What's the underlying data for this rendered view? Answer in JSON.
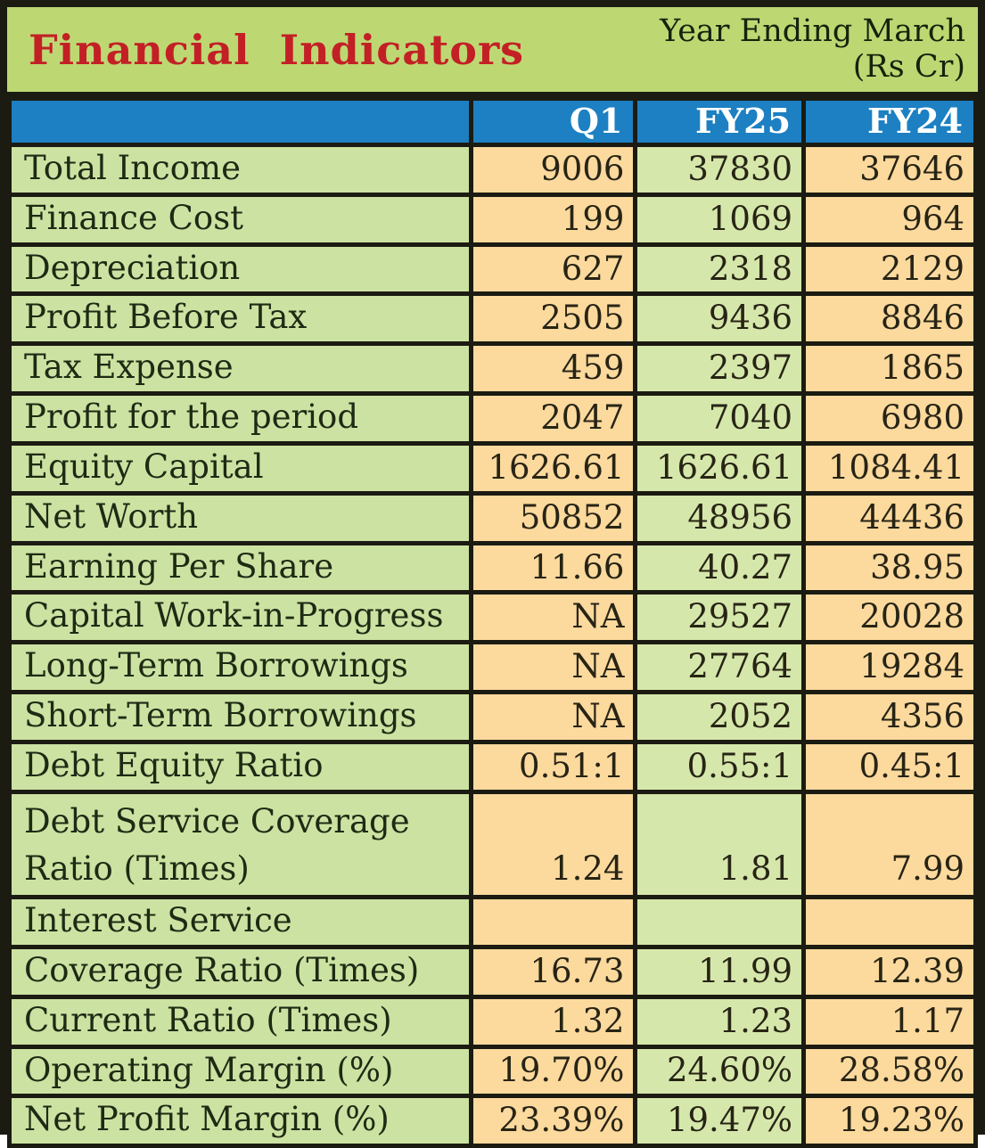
{
  "header": {
    "title": "Financial Indicators",
    "period_line1": "Year Ending March",
    "period_line2": "(Rs Cr)"
  },
  "columns": [
    "Q1",
    "FY25",
    "FY24"
  ],
  "colors": {
    "border_black": "#1b1b12",
    "header_green": "#bdd873",
    "label_green": "#cce2a2",
    "fy25_green": "#d6e7ab",
    "value_orange": "#fcd99d",
    "header_blue": "#1c80c2",
    "title_red": "#c32026"
  },
  "chart_data": {
    "type": "table",
    "title": "Financial Indicators",
    "subtitle": "Year Ending March (Rs Cr)",
    "columns": [
      "Q1",
      "FY25",
      "FY24"
    ],
    "rows": [
      {
        "label": "Total Income",
        "values": [
          "9006",
          "37830",
          "37646"
        ]
      },
      {
        "label": "Finance Cost",
        "values": [
          "199",
          "1069",
          "964"
        ]
      },
      {
        "label": "Depreciation",
        "values": [
          "627",
          "2318",
          "2129"
        ]
      },
      {
        "label": "Profit Before Tax",
        "values": [
          "2505",
          "9436",
          "8846"
        ]
      },
      {
        "label": "Tax Expense",
        "values": [
          "459",
          "2397",
          "1865"
        ]
      },
      {
        "label": "Profit for the period",
        "values": [
          "2047",
          "7040",
          "6980"
        ]
      },
      {
        "label": "Equity Capital",
        "values": [
          "1626.61",
          "1626.61",
          "1084.41"
        ]
      },
      {
        "label": "Net Worth",
        "values": [
          "50852",
          "48956",
          "44436"
        ]
      },
      {
        "label": "Earning Per Share",
        "values": [
          "11.66",
          "40.27",
          "38.95"
        ]
      },
      {
        "label": "Capital Work-in-Progress",
        "values": [
          "NA",
          "29527",
          "20028"
        ]
      },
      {
        "label": "Long-Term Borrowings",
        "values": [
          "NA",
          "27764",
          "19284"
        ]
      },
      {
        "label": "Short-Term Borrowings",
        "values": [
          "NA",
          "2052",
          "4356"
        ]
      },
      {
        "label": "Debt Equity Ratio",
        "values": [
          "0.51:1",
          "0.55:1",
          "0.45:1"
        ]
      },
      {
        "label": "Debt Service Coverage\nRatio (Times)",
        "values": [
          "1.24",
          "1.81",
          "7.99"
        ]
      },
      {
        "label": "Interest Service",
        "values": [
          "",
          "",
          ""
        ]
      },
      {
        "label": "Coverage Ratio (Times)",
        "values": [
          "16.73",
          "11.99",
          "12.39"
        ]
      },
      {
        "label": "Current Ratio (Times)",
        "values": [
          "1.32",
          "1.23",
          "1.17"
        ]
      },
      {
        "label": "Operating Margin (%)",
        "values": [
          "19.70%",
          "24.60%",
          "28.58%"
        ]
      },
      {
        "label": "Net Profit Margin (%)",
        "values": [
          "23.39%",
          "19.47%",
          "19.23%"
        ]
      }
    ]
  }
}
